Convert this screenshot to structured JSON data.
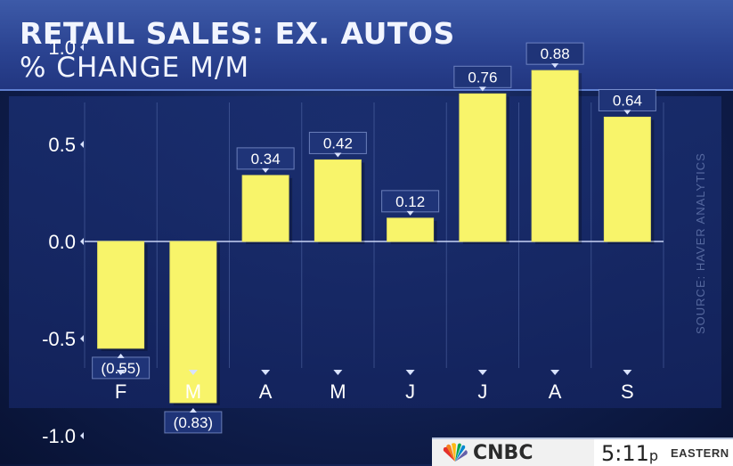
{
  "header": {
    "title": "RETAIL SALES: EX. AUTOS",
    "subtitle": "% CHANGE M/M"
  },
  "source": "SOURCE: HAVER ANALYTICS",
  "footer": {
    "network": "CNBC",
    "time": "5:11",
    "ampm": "p",
    "zone": "EASTERN"
  },
  "colors": {
    "bar": "#f8f46a",
    "background": "#14245e",
    "label_box": "#1f3478"
  },
  "chart_data": {
    "type": "bar",
    "title": "RETAIL SALES: EX. AUTOS",
    "subtitle": "% CHANGE M/M",
    "categories": [
      "F",
      "M",
      "A",
      "M",
      "J",
      "J",
      "A",
      "S"
    ],
    "values": [
      -0.55,
      -0.83,
      0.34,
      0.42,
      0.12,
      0.76,
      0.88,
      0.64
    ],
    "data_labels": [
      "(0.55)",
      "(0.83)",
      "0.34",
      "0.42",
      "0.12",
      "0.76",
      "0.88",
      "0.64"
    ],
    "yticks": [
      1.0,
      0.5,
      0.0,
      -0.5,
      -1.0
    ],
    "ytick_labels": [
      "1.0",
      "0.5",
      "0.0",
      "-0.5",
      "-1.0"
    ],
    "ylim": [
      -1.2,
      1.25
    ],
    "grid": "vertical",
    "xlabel": "",
    "ylabel": ""
  }
}
